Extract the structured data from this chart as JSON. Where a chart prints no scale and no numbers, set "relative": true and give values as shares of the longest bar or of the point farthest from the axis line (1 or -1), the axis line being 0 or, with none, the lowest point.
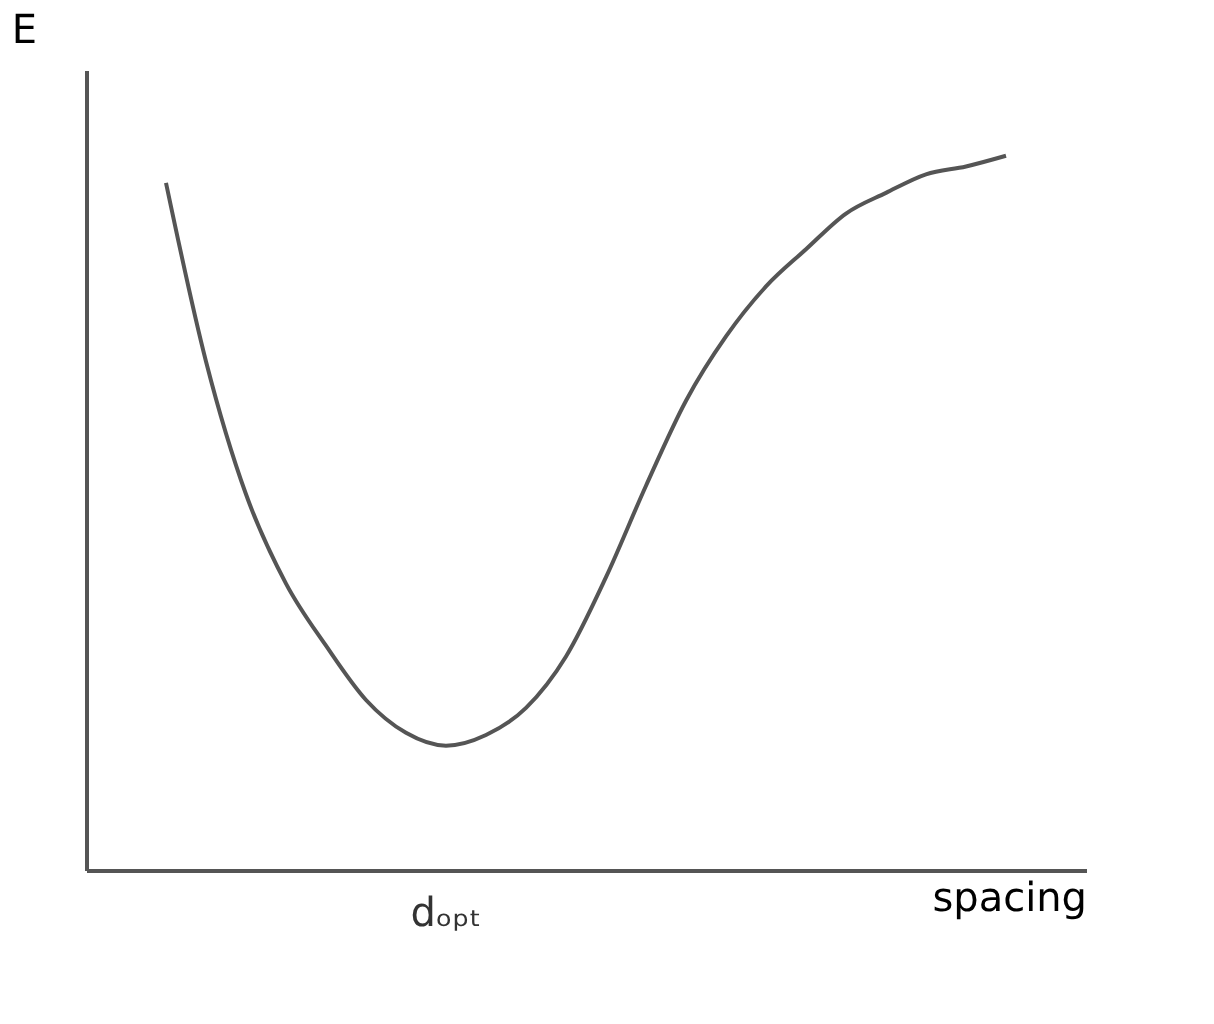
{
  "chart_data": {
    "type": "line",
    "relative": true,
    "xlabel": "spacing",
    "ylabel": "E",
    "annotations": [
      "dₒₚₜ"
    ],
    "color": "#555555",
    "categories": [
      null,
      null,
      null,
      null,
      null,
      null,
      null,
      null,
      null,
      null,
      null,
      null,
      null,
      null,
      null,
      null,
      null,
      null,
      null,
      null,
      null,
      null
    ],
    "values": [
      0.962,
      0.712,
      0.526,
      0.401,
      0.314,
      0.238,
      0.192,
      0.174,
      0.189,
      0.227,
      0.299,
      0.41,
      0.538,
      0.657,
      0.747,
      0.817,
      0.869,
      0.919,
      0.948,
      0.974,
      0.985,
      1.0
    ]
  }
}
